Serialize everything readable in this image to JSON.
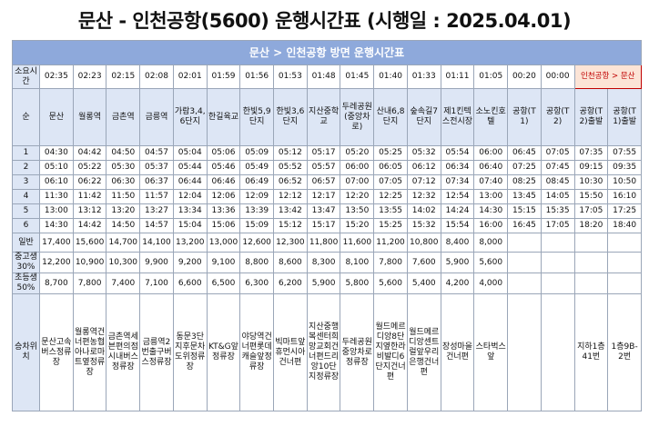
{
  "header": {
    "title": "문산 - 인천공항(5600) 운행시간표 (시행일 : 2025.04.01)"
  },
  "table": {
    "direction": "문산 > 인천공항 방면 운행시간표",
    "duration_label": "소요시간",
    "durations": [
      "02:35",
      "02:23",
      "02:15",
      "02:08",
      "02:01",
      "01:59",
      "01:56",
      "01:53",
      "01:48",
      "01:45",
      "01:40",
      "01:33",
      "01:11",
      "01:05",
      "00:20",
      "00:00"
    ],
    "return_label": "인천공항 > 문산",
    "index_label": "순",
    "stations": [
      "문산",
      "월롱역",
      "금촌역",
      "금릉역",
      "가람3,4,6단지",
      "한길육교",
      "한빛5,9단지",
      "한빛3,6단지",
      "지산중학교",
      "두레공원(중앙차로)",
      "산내6,8단지",
      "숲속길7단지",
      "제1킨텍스전시장",
      "소노킨호텔",
      "공항(T1)",
      "공항(T2)",
      "공항(T2)출발",
      "공항(T1)출발"
    ],
    "rows": [
      {
        "no": "1",
        "times": [
          "04:30",
          "04:42",
          "04:50",
          "04:57",
          "05:04",
          "05:06",
          "05:09",
          "05:12",
          "05:17",
          "05:20",
          "05:25",
          "05:32",
          "05:54",
          "06:00",
          "06:45",
          "07:05",
          "07:35",
          "07:55"
        ]
      },
      {
        "no": "2",
        "times": [
          "05:10",
          "05:22",
          "05:30",
          "05:37",
          "05:44",
          "05:46",
          "05:49",
          "05:52",
          "05:57",
          "06:00",
          "06:05",
          "06:12",
          "06:34",
          "06:40",
          "07:25",
          "07:45",
          "09:15",
          "09:35"
        ]
      },
      {
        "no": "3",
        "times": [
          "06:10",
          "06:22",
          "06:30",
          "06:37",
          "06:44",
          "06:46",
          "06:49",
          "06:52",
          "06:57",
          "07:00",
          "07:05",
          "07:12",
          "07:34",
          "07:40",
          "08:25",
          "08:45",
          "10:30",
          "10:50"
        ]
      },
      {
        "no": "4",
        "times": [
          "11:30",
          "11:42",
          "11:50",
          "11:57",
          "12:04",
          "12:06",
          "12:09",
          "12:12",
          "12:17",
          "12:20",
          "12:25",
          "12:32",
          "12:54",
          "13:00",
          "13:45",
          "14:05",
          "15:50",
          "16:10"
        ]
      },
      {
        "no": "5",
        "times": [
          "13:00",
          "13:12",
          "13:20",
          "13:27",
          "13:34",
          "13:36",
          "13:39",
          "13:42",
          "13:47",
          "13:50",
          "13:55",
          "14:02",
          "14:24",
          "14:30",
          "15:15",
          "15:35",
          "17:05",
          "17:25"
        ]
      },
      {
        "no": "6",
        "times": [
          "14:30",
          "14:42",
          "14:50",
          "14:57",
          "15:04",
          "15:06",
          "15:09",
          "15:12",
          "15:17",
          "15:20",
          "15:25",
          "15:32",
          "15:54",
          "16:00",
          "16:45",
          "17:05",
          "18:20",
          "18:40"
        ]
      }
    ],
    "fares": [
      {
        "label": "일반",
        "values": [
          "17,400",
          "15,600",
          "14,700",
          "14,100",
          "13,200",
          "13,000",
          "12,600",
          "12,300",
          "11,800",
          "11,600",
          "11,200",
          "10,800",
          "8,400",
          "8,000"
        ]
      },
      {
        "label": "중고생 30%",
        "values": [
          "12,200",
          "10,900",
          "10,300",
          "9,900",
          "9,200",
          "9,100",
          "8,800",
          "8,600",
          "8,300",
          "8,100",
          "7,800",
          "7,600",
          "5,900",
          "5,600"
        ]
      },
      {
        "label": "초등생 50%",
        "values": [
          "8,700",
          "7,800",
          "7,400",
          "7,100",
          "6,600",
          "6,500",
          "6,300",
          "6,200",
          "5,900",
          "5,800",
          "5,600",
          "5,400",
          "4,200",
          "4,000"
        ]
      }
    ],
    "boarding_label": "승차위치",
    "boarding": [
      "문산고속버스정류장",
      "월롱역건너편농협아나로마트옆정류장",
      "금촌역세븐편의점시내버스정류장",
      "금릉역2번출구버스정류장",
      "동문3단지후문차도위정류장",
      "KT&G앞정류장",
      "야당역건너편롯데캐슬앞정류장",
      "빅마트앞휴먼시아건너편",
      "지산중행복센터희망교회건너편드리앙10단지정류장",
      "두레공원중앙차로정류장",
      "월드메르디앙8단지옆한라비발디6단지건너편",
      "월드메르디앙센트럴앞우리은행건너편",
      "장성마을건너편",
      "스타벅스 앞",
      null,
      null,
      "지하1층41번",
      "1층9B-2번"
    ]
  }
}
